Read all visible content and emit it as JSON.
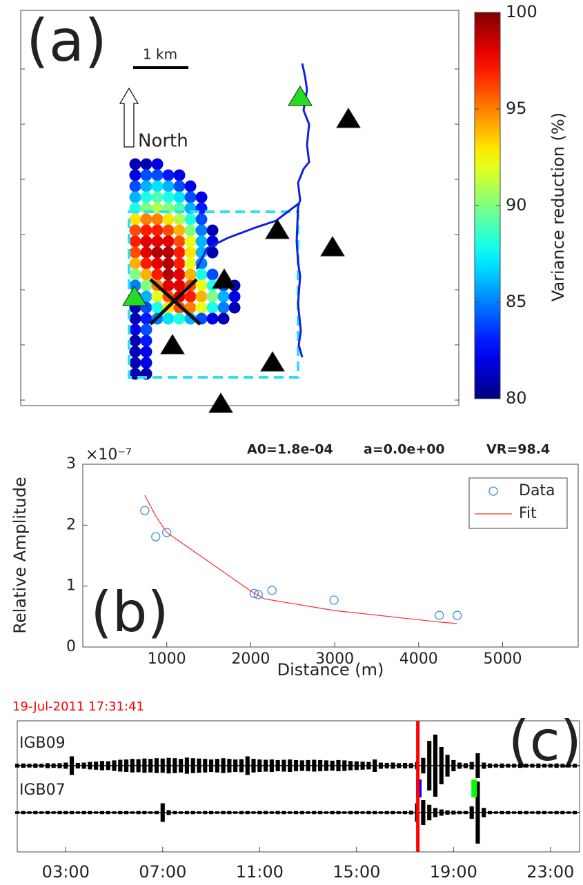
{
  "chart_data": [
    {
      "type": "heatmap",
      "panel_label": "(a)",
      "scale_label": "1 km",
      "north_label": "North",
      "colormap": "jet",
      "colorbar_label": "Variance reduction (%)",
      "clim": [
        80,
        100
      ],
      "cticks": [
        80,
        85,
        90,
        95,
        100
      ],
      "grid_values": [
        [
          81,
          81,
          82,
          null,
          null,
          null,
          null,
          null,
          null,
          null
        ],
        [
          82,
          84,
          84,
          83,
          82,
          null,
          null,
          null,
          null,
          null
        ],
        [
          84,
          86,
          87,
          86,
          84,
          82,
          null,
          null,
          null,
          null
        ],
        [
          86,
          88,
          89,
          88,
          87,
          84,
          82,
          null,
          null,
          null
        ],
        [
          88,
          90,
          91,
          90,
          89,
          86,
          83,
          null,
          null,
          null
        ],
        [
          93,
          95,
          95,
          93,
          91,
          88,
          84,
          null,
          null,
          null
        ],
        [
          96,
          97,
          97,
          96,
          94,
          90,
          85,
          81,
          null,
          null
        ],
        [
          97,
          98,
          98,
          98,
          96,
          92,
          86,
          82,
          null,
          null
        ],
        [
          96,
          98,
          99,
          99,
          97,
          93,
          86,
          81,
          null,
          null
        ],
        [
          94,
          97,
          98,
          99,
          97,
          92,
          85,
          null,
          null,
          null
        ],
        [
          90,
          94,
          97,
          99,
          98,
          94,
          88,
          84,
          null,
          null
        ],
        [
          85,
          90,
          95,
          98,
          98,
          96,
          92,
          88,
          84,
          81
        ],
        [
          82,
          86,
          92,
          96,
          98,
          97,
          94,
          90,
          86,
          82
        ],
        [
          81,
          84,
          88,
          93,
          96,
          95,
          92,
          88,
          85,
          81
        ],
        [
          81,
          83,
          85,
          87,
          88,
          86,
          84,
          82,
          81,
          null
        ],
        [
          82,
          84,
          null,
          null,
          null,
          null,
          null,
          null,
          null,
          null
        ],
        [
          81,
          83,
          null,
          null,
          null,
          null,
          null,
          null,
          null,
          null
        ],
        [
          81,
          82,
          null,
          null,
          null,
          null,
          null,
          null,
          null,
          null
        ],
        [
          81,
          82,
          null,
          null,
          null,
          null,
          null,
          null,
          null,
          null
        ],
        [
          81,
          81,
          null,
          null,
          null,
          null,
          null,
          null,
          null,
          null
        ]
      ]
    },
    {
      "type": "scatter",
      "panel_label": "(b)",
      "annotations": [
        "A0=1.8e-04",
        "a=0.0e+00",
        "VR=98.4"
      ],
      "xlabel": "Distance (m)",
      "ylabel": "Relative Amplitude",
      "y_exponent": "×10⁻⁷",
      "xlim": [
        0,
        5900
      ],
      "xticks": [
        1000,
        2000,
        3000,
        4000,
        5000
      ],
      "ylim": [
        0,
        3e-07
      ],
      "yticks": [
        0,
        {
          "value": 1e-07,
          "label": "1"
        },
        {
          "value": 2e-07,
          "label": "2"
        },
        {
          "value": 3e-07,
          "label": "3"
        }
      ],
      "legend": "northeast",
      "series": [
        {
          "name": "Data",
          "kind": "scatter",
          "color": "#3d8fd1",
          "x": [
            738,
            869,
            1000,
            2041,
            2090,
            2254,
            2992,
            4246,
            4459
          ],
          "values": [
            2.24e-07,
            1.81e-07,
            1.88e-07,
            8.8e-08,
            8.6e-08,
            9.3e-08,
            7.7e-08,
            5.2e-08,
            5.2e-08
          ]
        },
        {
          "name": "Fit",
          "kind": "line",
          "color": "#ff2b2b",
          "x": [
            738,
            869,
            1000,
            2000,
            2164,
            2992,
            4246,
            4459
          ],
          "values": [
            2.49e-07,
            2.15e-07,
            1.88e-07,
            9.2e-08,
            7.9e-08,
            6e-08,
            4.1e-08,
            3.85e-08
          ]
        }
      ]
    },
    {
      "type": "seismogram",
      "panel_label": "(c)",
      "time_label": "19-Jul-2011 17:31:41",
      "marker_time": 17.528,
      "marker_color": "#ff0000",
      "xlim": [
        1.0,
        24.2
      ],
      "xticks": [
        {
          "value": 3,
          "label": "03:00"
        },
        {
          "value": 7,
          "label": "07:00"
        },
        {
          "value": 11,
          "label": "11:00"
        },
        {
          "value": 15,
          "label": "15:00"
        },
        {
          "value": 19,
          "label": "19:00"
        },
        {
          "value": 23,
          "label": "23:00"
        }
      ],
      "x": [
        1,
        1.25,
        1.5,
        1.75,
        2,
        2.25,
        2.5,
        2.75,
        3,
        3.25,
        3.5,
        3.75,
        4,
        4.25,
        4.5,
        4.75,
        5,
        5.25,
        5.5,
        5.75,
        6,
        6.25,
        6.5,
        6.75,
        7,
        7.25,
        7.5,
        7.75,
        8,
        8.25,
        8.5,
        8.75,
        9,
        9.25,
        9.5,
        9.75,
        10,
        10.25,
        10.5,
        10.75,
        11,
        11.25,
        11.5,
        11.75,
        12,
        12.25,
        12.5,
        12.75,
        13,
        13.25,
        13.5,
        13.75,
        14,
        14.25,
        14.5,
        14.75,
        15,
        15.25,
        15.5,
        15.75,
        16,
        16.25,
        16.5,
        16.75,
        17,
        17.25,
        17.5,
        17.75,
        18,
        18.25,
        18.5,
        18.75,
        19,
        19.25,
        19.5,
        19.75,
        20,
        20.25,
        20.5,
        20.75,
        21,
        21.25,
        21.5,
        21.75,
        22,
        22.25,
        22.5,
        22.75,
        23,
        23.25,
        23.5,
        23.75,
        24
      ],
      "series": [
        {
          "name": "IGB09",
          "color": "#000000",
          "picks": [],
          "values": [
            0.06,
            0.07,
            0.06,
            0.07,
            0.06,
            0.08,
            0.07,
            0.08,
            0.1,
            0.3,
            0.09,
            0.1,
            0.12,
            0.13,
            0.15,
            0.14,
            0.17,
            0.19,
            0.2,
            0.22,
            0.21,
            0.23,
            0.22,
            0.24,
            0.23,
            0.25,
            0.24,
            0.22,
            0.26,
            0.24,
            0.23,
            0.22,
            0.2,
            0.22,
            0.24,
            0.22,
            0.2,
            0.21,
            0.3,
            0.22,
            0.2,
            0.19,
            0.2,
            0.18,
            0.19,
            0.2,
            0.18,
            0.17,
            0.18,
            0.19,
            0.18,
            0.17,
            0.16,
            0.18,
            0.17,
            0.15,
            0.14,
            0.13,
            0.12,
            0.2,
            0.1,
            0.09,
            0.1,
            0.08,
            0.09,
            0.08,
            0.12,
            0.25,
            0.8,
            1.0,
            0.6,
            0.35,
            0.18,
            0.1,
            0.08,
            0.12,
            0.4,
            0.1,
            0.07,
            0.06,
            0.07,
            0.06,
            0.06,
            0.07,
            0.06,
            0.06,
            0.07,
            0.06,
            0.06,
            0.07,
            0.06,
            0.06,
            0.06
          ]
        },
        {
          "name": "IGB07",
          "color": "#000000",
          "picks": [
            {
              "x": 17.57,
              "color": "#0000ff"
            },
            {
              "x": 19.85,
              "color": "#00ff00"
            }
          ],
          "values": [
            0.04,
            0.05,
            0.04,
            0.05,
            0.04,
            0.05,
            0.04,
            0.05,
            0.05,
            0.05,
            0.04,
            0.05,
            0.05,
            0.04,
            0.05,
            0.05,
            0.04,
            0.05,
            0.05,
            0.04,
            0.05,
            0.05,
            0.04,
            0.05,
            0.3,
            0.08,
            0.05,
            0.04,
            0.05,
            0.05,
            0.04,
            0.05,
            0.05,
            0.04,
            0.05,
            0.05,
            0.04,
            0.05,
            0.05,
            0.04,
            0.05,
            0.05,
            0.04,
            0.05,
            0.05,
            0.04,
            0.05,
            0.05,
            0.04,
            0.05,
            0.05,
            0.04,
            0.05,
            0.05,
            0.04,
            0.05,
            0.05,
            0.04,
            0.05,
            0.05,
            0.04,
            0.05,
            0.05,
            0.04,
            0.05,
            0.06,
            0.3,
            0.4,
            0.25,
            0.15,
            0.1,
            0.07,
            0.06,
            0.05,
            0.05,
            0.2,
            1.0,
            0.15,
            0.05,
            0.04,
            0.05,
            0.05,
            0.04,
            0.05,
            0.05,
            0.04,
            0.05,
            0.05,
            0.04,
            0.05,
            0.05,
            0.04,
            0.05
          ]
        }
      ]
    }
  ]
}
